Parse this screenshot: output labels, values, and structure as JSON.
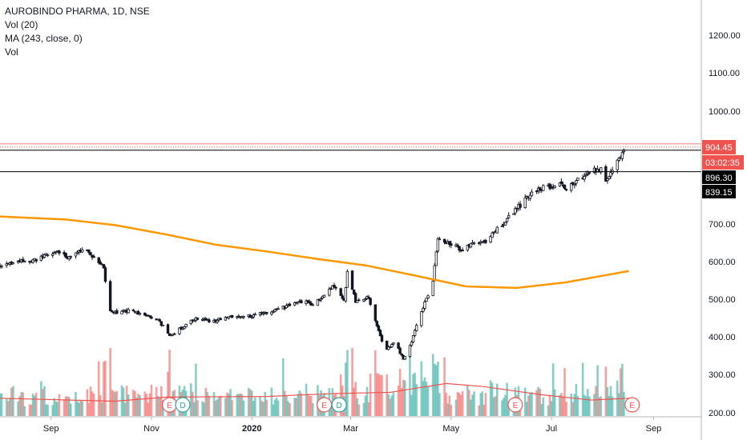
{
  "legend": {
    "symbol_line": "AUROBINDO PHARMA, 1D, NSE",
    "vol_line": "Vol (20)",
    "ma_line": "MA (243, close, 0)",
    "vol2_line": "Vol"
  },
  "price_tags": {
    "last_price": "904.45",
    "countdown": "03:02:35",
    "level_1": "896.30",
    "level_2": "839.15"
  },
  "colors": {
    "up": "#26a69a",
    "down": "#ef5350",
    "candle": "#131722",
    "ma": "#ff9800",
    "vol_ma": "#ef5350",
    "last_price_tag": "#ef5350",
    "level_tag": "#000000"
  },
  "chart_data": {
    "type": "candlestick",
    "symbol": "AUROBINDO PHARMA",
    "interval": "1D",
    "exchange": "NSE",
    "y_ticks": [
      200,
      300,
      400,
      500,
      600,
      700,
      1000,
      1100,
      1200
    ],
    "y_tick_labels": [
      "200.00",
      "300.00",
      "400.00",
      "500.00",
      "600.00",
      "700.00",
      "1000.00",
      "1100.00",
      "1200.00"
    ],
    "ylim": [
      190,
      1290
    ],
    "x_ticks": [
      {
        "label": "Sep",
        "date": "2019-09-01",
        "bold": false
      },
      {
        "label": "Nov",
        "date": "2019-11-01",
        "bold": false
      },
      {
        "label": "2020",
        "date": "2020-01-01",
        "bold": true
      },
      {
        "label": "Mar",
        "date": "2020-03-01",
        "bold": false
      },
      {
        "label": "May",
        "date": "2020-05-01",
        "bold": false
      },
      {
        "label": "Jul",
        "date": "2020-07-01",
        "bold": false
      },
      {
        "label": "Sep",
        "date": "2020-09-01",
        "bold": false
      }
    ],
    "xlim": [
      "2019-08-01",
      "2020-09-30"
    ],
    "close_path": [
      [
        "2019-08-01",
        585
      ],
      [
        "2019-08-10",
        600
      ],
      [
        "2019-08-20",
        600
      ],
      [
        "2019-08-28",
        615
      ],
      [
        "2019-09-05",
        625
      ],
      [
        "2019-09-12",
        610
      ],
      [
        "2019-09-20",
        630
      ],
      [
        "2019-09-28",
        612
      ],
      [
        "2019-10-03",
        585
      ],
      [
        "2019-10-06",
        470
      ],
      [
        "2019-10-12",
        465
      ],
      [
        "2019-10-20",
        470
      ],
      [
        "2019-10-28",
        455
      ],
      [
        "2019-11-05",
        448
      ],
      [
        "2019-11-12",
        400
      ],
      [
        "2019-11-18",
        420
      ],
      [
        "2019-11-28",
        450
      ],
      [
        "2019-12-08",
        440
      ],
      [
        "2019-12-18",
        455
      ],
      [
        "2020-01-01",
        455
      ],
      [
        "2020-01-12",
        468
      ],
      [
        "2020-01-22",
        480
      ],
      [
        "2020-02-01",
        495
      ],
      [
        "2020-02-08",
        485
      ],
      [
        "2020-02-15",
        520
      ],
      [
        "2020-02-20",
        535
      ],
      [
        "2020-02-26",
        495
      ],
      [
        "2020-02-28",
        570
      ],
      [
        "2020-03-04",
        495
      ],
      [
        "2020-03-12",
        505
      ],
      [
        "2020-03-18",
        415
      ],
      [
        "2020-03-22",
        365
      ],
      [
        "2020-03-28",
        385
      ],
      [
        "2020-04-02",
        340
      ],
      [
        "2020-04-06",
        375
      ],
      [
        "2020-04-10",
        430
      ],
      [
        "2020-04-16",
        500
      ],
      [
        "2020-04-20",
        550
      ],
      [
        "2020-04-23",
        660
      ],
      [
        "2020-04-30",
        650
      ],
      [
        "2020-05-08",
        630
      ],
      [
        "2020-05-15",
        650
      ],
      [
        "2020-05-22",
        655
      ],
      [
        "2020-05-30",
        690
      ],
      [
        "2020-06-06",
        725
      ],
      [
        "2020-06-13",
        755
      ],
      [
        "2020-06-20",
        790
      ],
      [
        "2020-06-27",
        798
      ],
      [
        "2020-07-04",
        805
      ],
      [
        "2020-07-11",
        795
      ],
      [
        "2020-07-18",
        825
      ],
      [
        "2020-07-25",
        840
      ],
      [
        "2020-07-31",
        845
      ],
      [
        "2020-08-03",
        808
      ],
      [
        "2020-08-07",
        850
      ],
      [
        "2020-08-12",
        878
      ],
      [
        "2020-08-15",
        904
      ]
    ],
    "ma_243": [
      [
        "2019-08-01",
        720
      ],
      [
        "2019-09-10",
        712
      ],
      [
        "2019-10-10",
        697
      ],
      [
        "2019-11-10",
        672
      ],
      [
        "2019-12-10",
        645
      ],
      [
        "2020-01-10",
        627
      ],
      [
        "2020-02-10",
        607
      ],
      [
        "2020-03-10",
        590
      ],
      [
        "2020-04-10",
        562
      ],
      [
        "2020-05-10",
        534
      ],
      [
        "2020-06-10",
        530
      ],
      [
        "2020-07-10",
        545
      ],
      [
        "2020-08-17",
        575
      ]
    ],
    "volume_max": 115,
    "volume_ma": [
      [
        "2019-08-01",
        30
      ],
      [
        "2019-10-10",
        25
      ],
      [
        "2019-11-10",
        32
      ],
      [
        "2020-01-10",
        33
      ],
      [
        "2020-02-20",
        38
      ],
      [
        "2020-03-25",
        40
      ],
      [
        "2020-04-28",
        55
      ],
      [
        "2020-05-20",
        50
      ],
      [
        "2020-06-25",
        36
      ],
      [
        "2020-07-25",
        27
      ],
      [
        "2020-08-17",
        30
      ]
    ],
    "horizontal_levels": [
      {
        "value": 904.45,
        "style": "dotted",
        "color": "#ef5350"
      },
      {
        "value": 896.3,
        "style": "solid",
        "color": "#000000"
      },
      {
        "value": 839.15,
        "style": "solid",
        "color": "#000000"
      }
    ],
    "event_markers": [
      {
        "type": "E",
        "date": "2019-11-12",
        "color": "#ef5350"
      },
      {
        "type": "D",
        "date": "2019-11-20",
        "color": "#26a69a"
      },
      {
        "type": "E",
        "date": "2020-02-14",
        "color": "#ef5350"
      },
      {
        "type": "D",
        "date": "2020-02-23",
        "color": "#26a69a"
      },
      {
        "type": "E",
        "date": "2020-06-09",
        "color": "#ef5350"
      },
      {
        "type": "E",
        "date": "2020-08-19",
        "color": "#ef5350"
      }
    ]
  }
}
